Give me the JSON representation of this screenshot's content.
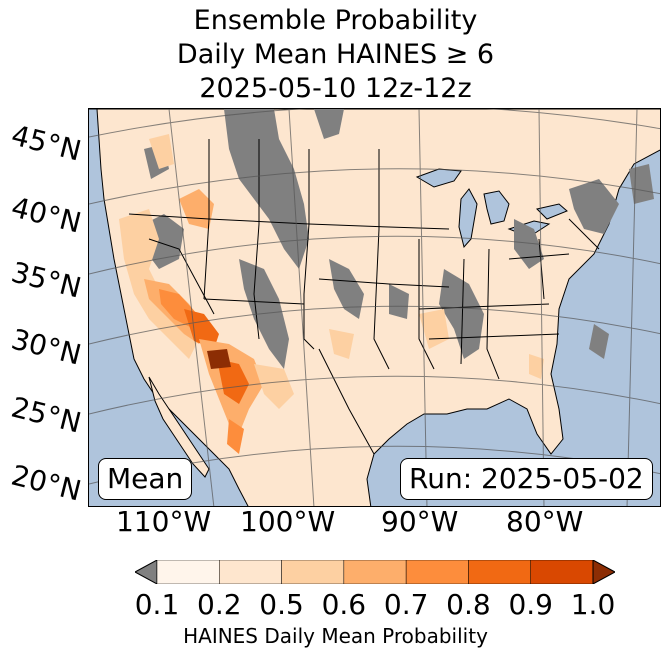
{
  "title": {
    "line1": "Ensemble Probability",
    "line2": "Daily Mean HAINES ≥ 6",
    "line3": "2025-05-10 12z-12z"
  },
  "map": {
    "latitude_labels": [
      "45°N",
      "40°N",
      "35°N",
      "30°N",
      "25°N",
      "20°N"
    ],
    "longitude_labels": [
      "110°W",
      "100°W",
      "90°W",
      "80°W"
    ],
    "mean_label": "Mean",
    "run_label": "Run: 2025-05-02",
    "colors": {
      "ocean": "#afc4dc",
      "land": "#fde6cf",
      "missing": "#808080"
    }
  },
  "colorbar": {
    "ticks": [
      "0.1",
      "0.2",
      "0.5",
      "0.6",
      "0.7",
      "0.8",
      "0.9",
      "1.0"
    ],
    "colors": [
      "#fff5eb",
      "#fee6ce",
      "#fdd0a2",
      "#fdae6b",
      "#fd8d3c",
      "#f16913",
      "#d94801",
      "#8c2d04"
    ],
    "under_color": "#808080",
    "label": "HAINES Daily Mean Probability"
  }
}
